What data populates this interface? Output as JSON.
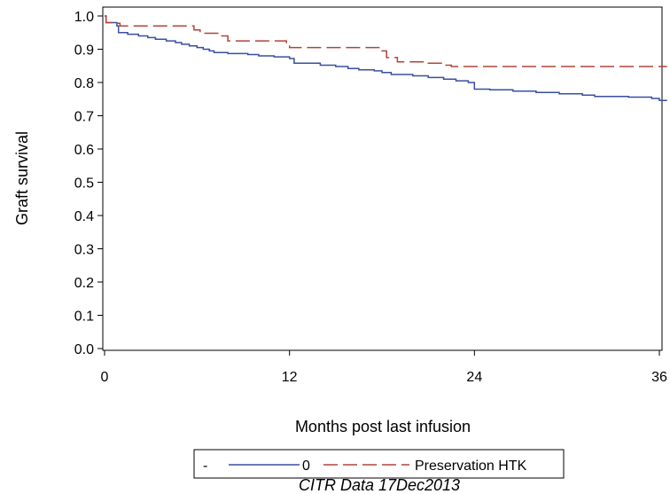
{
  "chart_data": {
    "type": "line",
    "title": "",
    "xlabel": "Months post last infusion",
    "ylabel": "Graft survival",
    "xlim": [
      0,
      36.5
    ],
    "ylim": [
      0,
      1.0
    ],
    "x_ticks": [
      {
        "value": 0,
        "label": "0"
      },
      {
        "value": 12,
        "label": "12"
      },
      {
        "value": 24,
        "label": "24"
      },
      {
        "value": 36,
        "label": "36"
      }
    ],
    "y_ticks": [
      {
        "value": 0.0,
        "label": "0.0"
      },
      {
        "value": 0.1,
        "label": "0.1"
      },
      {
        "value": 0.2,
        "label": "0.2"
      },
      {
        "value": 0.3,
        "label": "0.3"
      },
      {
        "value": 0.4,
        "label": "0.4"
      },
      {
        "value": 0.5,
        "label": "0.5"
      },
      {
        "value": 0.6,
        "label": "0.6"
      },
      {
        "value": 0.7,
        "label": "0.7"
      },
      {
        "value": 0.8,
        "label": "0.8"
      },
      {
        "value": 0.9,
        "label": "0.9"
      },
      {
        "value": 1.0,
        "label": "1.0"
      }
    ],
    "grid": false,
    "step": true,
    "legend": {
      "placement": "bottom",
      "prefix": "-",
      "entries": [
        "0",
        "Preservation HTK"
      ]
    },
    "series": [
      {
        "name": "0",
        "color": "#3a4f9e",
        "dash": "solid",
        "points": [
          [
            0,
            1.0
          ],
          [
            0.1,
            0.98
          ],
          [
            0.8,
            0.97
          ],
          [
            0.9,
            0.95
          ],
          [
            1.5,
            0.945
          ],
          [
            2.2,
            0.94
          ],
          [
            2.8,
            0.935
          ],
          [
            3.3,
            0.93
          ],
          [
            4.0,
            0.925
          ],
          [
            4.6,
            0.92
          ],
          [
            5.0,
            0.915
          ],
          [
            5.5,
            0.91
          ],
          [
            6.0,
            0.905
          ],
          [
            6.4,
            0.9
          ],
          [
            6.8,
            0.895
          ],
          [
            7.1,
            0.89
          ],
          [
            8.0,
            0.887
          ],
          [
            9.3,
            0.884
          ],
          [
            10.0,
            0.88
          ],
          [
            11.0,
            0.877
          ],
          [
            12.0,
            0.872
          ],
          [
            12.3,
            0.858
          ],
          [
            14.0,
            0.852
          ],
          [
            15.0,
            0.848
          ],
          [
            15.8,
            0.842
          ],
          [
            16.5,
            0.838
          ],
          [
            17.5,
            0.835
          ],
          [
            18.0,
            0.83
          ],
          [
            18.6,
            0.824
          ],
          [
            20.0,
            0.82
          ],
          [
            21.0,
            0.815
          ],
          [
            22.0,
            0.81
          ],
          [
            22.8,
            0.805
          ],
          [
            23.6,
            0.8
          ],
          [
            24.0,
            0.78
          ],
          [
            25.0,
            0.778
          ],
          [
            26.5,
            0.774
          ],
          [
            28.0,
            0.77
          ],
          [
            29.5,
            0.766
          ],
          [
            31.0,
            0.762
          ],
          [
            31.8,
            0.758
          ],
          [
            34.0,
            0.756
          ],
          [
            35.5,
            0.752
          ],
          [
            36.0,
            0.746
          ],
          [
            36.5,
            0.746
          ]
        ]
      },
      {
        "name": "Preservation HTK",
        "color": "#b0443a",
        "dash": "long-dash",
        "points": [
          [
            0,
            1.0
          ],
          [
            0.1,
            0.98
          ],
          [
            0.6,
            0.978
          ],
          [
            1.0,
            0.97
          ],
          [
            5.8,
            0.958
          ],
          [
            6.2,
            0.948
          ],
          [
            7.5,
            0.94
          ],
          [
            8.0,
            0.925
          ],
          [
            11.8,
            0.918
          ],
          [
            12.0,
            0.905
          ],
          [
            18.0,
            0.895
          ],
          [
            18.3,
            0.875
          ],
          [
            19.0,
            0.862
          ],
          [
            21.0,
            0.858
          ],
          [
            22.0,
            0.852
          ],
          [
            22.5,
            0.848
          ],
          [
            36.5,
            0.848
          ]
        ]
      }
    ]
  },
  "footnote": "CITR  Data 17Dec2013"
}
